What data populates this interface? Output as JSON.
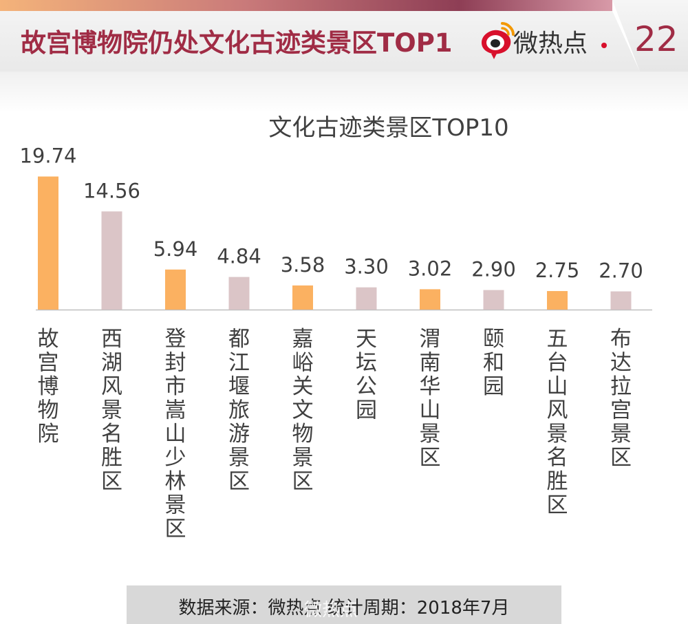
{
  "header": {
    "title": "故宫博物院仍处文化古迹类景区TOP1",
    "brand": "微热点",
    "page_number": "22"
  },
  "footer": {
    "source": "数据来源：微热点   统计周期：2018年7月"
  },
  "watermark": "微热点",
  "colors": {
    "title": "#a02c45",
    "bar_orange": "#fbb161",
    "bar_pink": "#dbc5c7",
    "axis": "#bfbfbf",
    "text": "#404040"
  },
  "chart_data": {
    "type": "bar",
    "title": "文化古迹类景区TOP10",
    "categories": [
      "故宫博物院",
      "西湖风景名胜区",
      "登封市嵩山少林景区",
      "都江堰旅游景区",
      "嘉峪关文物景区",
      "天坛公园",
      "渭南华山景区",
      "颐和园",
      "五台山风景名胜区",
      "布达拉宫景区"
    ],
    "value_labels": [
      "19.74",
      "14.56",
      "5.94",
      "4.84",
      "3.58",
      "3.30",
      "3.02",
      "2.90",
      "2.75",
      "2.70"
    ],
    "values": [
      19.74,
      14.56,
      5.94,
      4.84,
      3.58,
      3.3,
      3.02,
      2.9,
      2.75,
      2.7
    ],
    "bar_color_pattern": [
      "orange",
      "pink"
    ],
    "xlabel": "",
    "ylabel": "",
    "grid": false,
    "ylim": [
      0,
      20
    ]
  }
}
